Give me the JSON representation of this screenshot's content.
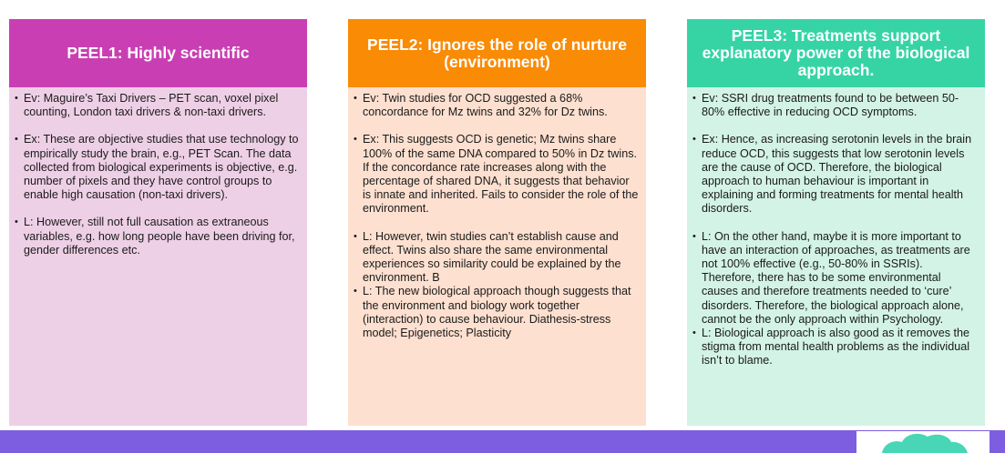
{
  "cards": [
    {
      "title": "PEEL1: Highly scientific",
      "points": [
        "Ev: Maguire’s Taxi Drivers – PET scan, voxel pixel counting, London taxi drivers & non-taxi drivers.",
        "Ex: These are objective studies that use technology to empirically study the brain, e.g., PET Scan. The data collected from biological experiments is objective, e.g. number of pixels and they have control groups to enable high causation (non-taxi drivers).",
        "L: However, still not full causation as extraneous variables, e.g. how long people have been driving for, gender differences etc."
      ]
    },
    {
      "title": "PEEL2: Ignores the role of nurture (environment)",
      "points": [
        "Ev: Twin studies for OCD suggested a 68% concordance for Mz twins and 32% for Dz twins.",
        "Ex: This suggests OCD is genetic; Mz twins share 100% of the same DNA compared to 50% in Dz twins. If the concordance rate increases along with the percentage of shared DNA, it suggests that behavior is innate and inherited. Fails to consider the role of the environment.",
        "L: However, twin studies can’t establish cause and effect. Twins also share the same environmental experiences so similarity could be explained by the environment. B",
        "L: The new biological approach though suggests that the environment and biology work together (interaction) to cause behaviour. Diathesis-stress model; Epigenetics; Plasticity"
      ]
    },
    {
      "title": "PEEL3: Treatments support explanatory power of the biological approach.",
      "points": [
        "Ev: SSRI drug treatments found to be between 50-80% effective in reducing OCD symptoms.",
        "Ex: Hence, as increasing serotonin levels in the brain reduce OCD, this suggests that low serotonin levels are the cause of OCD. Therefore, the biological approach to human behaviour is important in explaining and forming treatments for mental health disorders.",
        "L: On the other hand, maybe it is more important to have an interaction of approaches, as treatments are not 100% effective (e.g., 50-80% in SSRIs). Therefore, there has to be some environmental causes and therefore treatments needed to ‘cure’ disorders. Therefore, the biological approach alone, cannot be the only approach within Psychology.",
        "L: Biological approach is also good as it removes the stigma from mental health problems as the individual isn’t to blame."
      ]
    }
  ],
  "colors": {
    "peel1_header": "#c93fb3",
    "peel1_body": "#eed0e6",
    "peel2_header": "#f98b05",
    "peel2_body": "#fde0d0",
    "peel3_header": "#36d4a5",
    "peel3_body": "#d3f3e6",
    "bottom_bar": "#7e5ee0",
    "cloud": "#48d6b6"
  },
  "icons": {
    "corner": "cloud-icon"
  }
}
